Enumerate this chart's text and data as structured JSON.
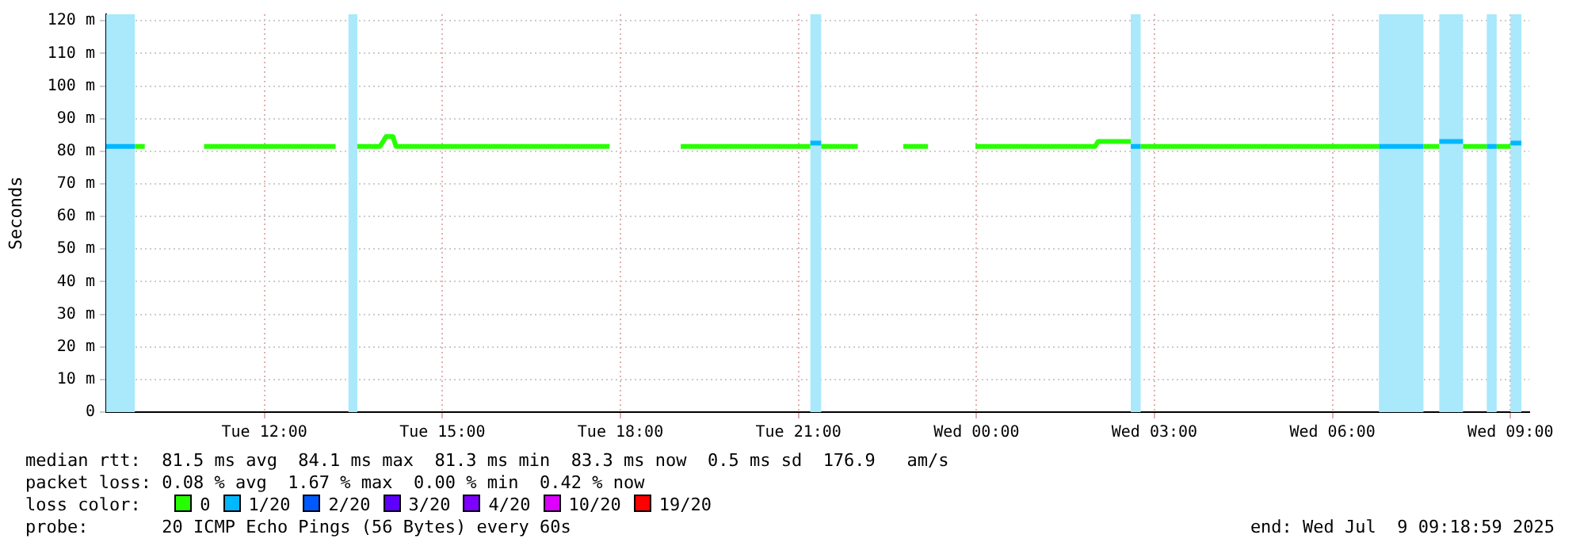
{
  "chart_data": {
    "type": "line",
    "ylabel": "Seconds",
    "legend_title": "loss color:",
    "legend": "bottom",
    "grid": true,
    "marker": "none",
    "line_style": "solid",
    "xlim": [
      "2025-07-08T09:20",
      "2025-07-09T09:19"
    ],
    "xticks": [
      {
        "value": "2025-07-08T12:00",
        "label": "Tue 12:00"
      },
      {
        "value": "2025-07-08T15:00",
        "label": "Tue 15:00"
      },
      {
        "value": "2025-07-08T18:00",
        "label": "Tue 18:00"
      },
      {
        "value": "2025-07-08T21:00",
        "label": "Tue 21:00"
      },
      {
        "value": "2025-07-09T00:00",
        "label": "Wed 00:00"
      },
      {
        "value": "2025-07-09T03:00",
        "label": "Wed 03:00"
      },
      {
        "value": "2025-07-09T06:00",
        "label": "Wed 06:00"
      },
      {
        "value": "2025-07-09T09:00",
        "label": "Wed 09:00"
      }
    ],
    "ylim": [
      0,
      122
    ],
    "yticks": [
      0,
      {
        "value": 10,
        "label": "10 m"
      },
      {
        "value": 20,
        "label": "20 m"
      },
      {
        "value": 30,
        "label": "30 m"
      },
      {
        "value": 40,
        "label": "40 m"
      },
      {
        "value": 50,
        "label": "50 m"
      },
      {
        "value": 60,
        "label": "60 m"
      },
      {
        "value": 70,
        "label": "70 m"
      },
      {
        "value": 80,
        "label": "80 m"
      },
      {
        "value": 90,
        "label": "90 m"
      },
      {
        "value": 100,
        "label": "100 m"
      },
      {
        "value": 110,
        "label": "110 m"
      },
      {
        "value": 120,
        "label": "120 m"
      }
    ],
    "series": [
      {
        "name": "0",
        "color": "#26ff00",
        "x": [
          "2025-07-08T09:49",
          "2025-07-08T09:59",
          "2025-07-08T10:00",
          "2025-07-08T10:59",
          "2025-07-08T13:12",
          "2025-07-08T13:25",
          "2025-07-08T13:34",
          "2025-07-08T13:57",
          "2025-07-08T14:03",
          "2025-07-08T14:10",
          "2025-07-08T14:13",
          "2025-07-08T17:49",
          "2025-07-08T18:00",
          "2025-07-08T19:01",
          "2025-07-08T21:12",
          "2025-07-08T21:18",
          "2025-07-08T21:23",
          "2025-07-08T22:00",
          "2025-07-08T22:12",
          "2025-07-08T22:46",
          "2025-07-08T23:11",
          "2025-07-08T23:30",
          "2025-07-08T23:59",
          "2025-07-09T02:00",
          "2025-07-09T02:03",
          "2025-07-09T02:36",
          "2025-07-09T02:39",
          "2025-07-09T02:46",
          "2025-07-09T06:47",
          "2025-07-09T07:00",
          "2025-07-09T07:32",
          "2025-07-09T07:48",
          "2025-07-09T07:54",
          "2025-07-09T08:12",
          "2025-07-09T08:36",
          "2025-07-09T08:39",
          "2025-07-09T08:46",
          "2025-07-09T09:00"
        ],
        "values": [
          81.5,
          81.5,
          null,
          81.5,
          81.5,
          null,
          81.5,
          81.5,
          84.5,
          84.5,
          81.5,
          81.5,
          null,
          81.5,
          81.5,
          null,
          81.5,
          81.5,
          null,
          81.5,
          81.5,
          null,
          81.5,
          81.5,
          83,
          83,
          null,
          81.5,
          81.5,
          null,
          81.5,
          81.5,
          null,
          81.5,
          81.5,
          null,
          81.5,
          81.5
        ]
      },
      {
        "name": "1/20",
        "color": "#00b8ff",
        "x": [
          "2025-07-08T09:20",
          "2025-07-08T09:49",
          "2025-07-08T09:54",
          "2025-07-08T21:12",
          "2025-07-08T21:23",
          "2025-07-08T21:30",
          "2025-07-09T02:36",
          "2025-07-09T02:46",
          "2025-07-09T03:00",
          "2025-07-09T06:47",
          "2025-07-09T07:32",
          "2025-07-09T07:36",
          "2025-07-09T07:48",
          "2025-07-09T08:12",
          "2025-07-09T08:18",
          "2025-07-09T08:36",
          "2025-07-09T08:46",
          "2025-07-09T08:54",
          "2025-07-09T09:00",
          "2025-07-09T09:11"
        ],
        "values": [
          81.5,
          81.5,
          null,
          82.5,
          82.5,
          null,
          81.5,
          81.5,
          null,
          81.5,
          81.5,
          null,
          83,
          83,
          null,
          81.5,
          81.5,
          null,
          82.5,
          82.5
        ]
      },
      {
        "name": "2/20",
        "color": "#0059ff"
      },
      {
        "name": "3/20",
        "color": "#5e00ff"
      },
      {
        "name": "4/20",
        "color": "#7e00ff"
      },
      {
        "name": "10/20",
        "color": "#dd00ff"
      },
      {
        "name": "19/20",
        "color": "#ff0000"
      }
    ],
    "bands": [
      {
        "axis": "x",
        "from": "2025-07-08T09:20",
        "to": "2025-07-08T09:49",
        "color": "#aae8fc"
      },
      {
        "axis": "x",
        "from": "2025-07-08T13:25",
        "to": "2025-07-08T13:34",
        "color": "#aae8fc"
      },
      {
        "axis": "x",
        "from": "2025-07-08T21:12",
        "to": "2025-07-08T21:23",
        "color": "#aae8fc"
      },
      {
        "axis": "x",
        "from": "2025-07-09T02:36",
        "to": "2025-07-09T02:46",
        "color": "#aae8fc"
      },
      {
        "axis": "x",
        "from": "2025-07-09T06:47",
        "to": "2025-07-09T07:32",
        "color": "#aae8fc"
      },
      {
        "axis": "x",
        "from": "2025-07-09T07:48",
        "to": "2025-07-09T08:12",
        "color": "#aae8fc"
      },
      {
        "axis": "x",
        "from": "2025-07-09T08:36",
        "to": "2025-07-09T08:46",
        "color": "#aae8fc"
      },
      {
        "axis": "x",
        "from": "2025-07-09T09:00",
        "to": "2025-07-09T09:11",
        "color": "#aae8fc"
      }
    ],
    "annotations": [
      "median rtt:  81.5 ms avg  84.1 ms max  81.3 ms min  83.3 ms now  0.5 ms sd  176.9   am/s",
      "packet loss: 0.08 % avg  1.67 % max  0.00 % min  0.42 % now",
      "probe:       20 ICMP Echo Pings (56 Bytes) every 60s",
      "end: Wed Jul  9 09:18:59 2025"
    ]
  }
}
